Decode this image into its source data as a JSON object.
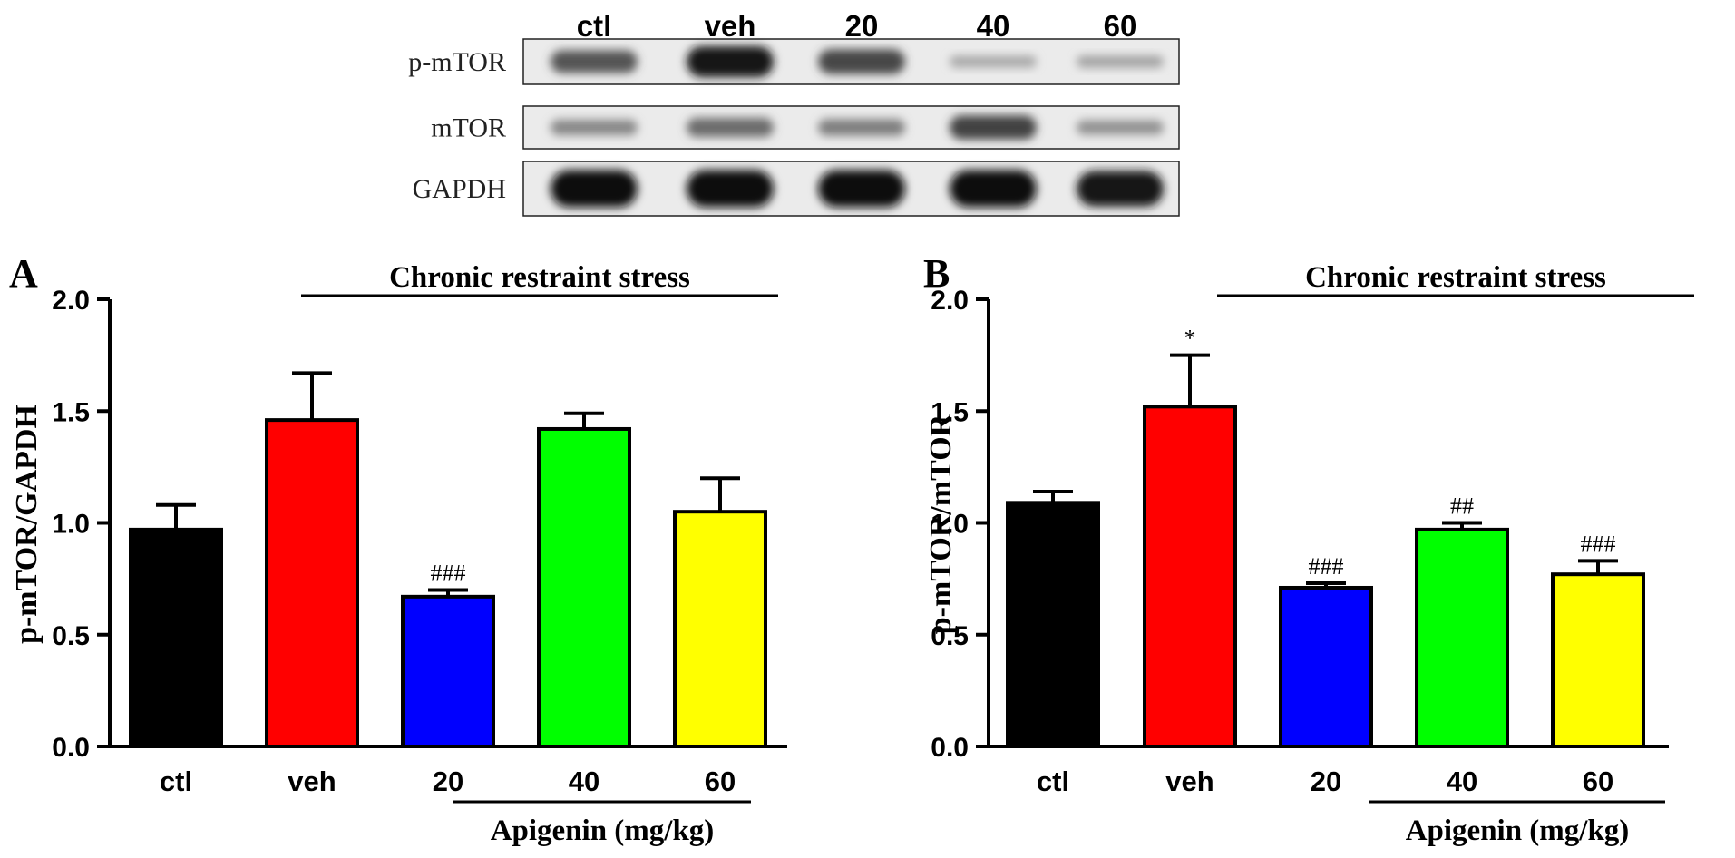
{
  "western_blot": {
    "lanes": [
      "ctl",
      "veh",
      "20",
      "40",
      "60"
    ],
    "rows": [
      {
        "label": "p-mTOR",
        "intensity": [
          0.62,
          0.95,
          0.7,
          0.18,
          0.2
        ]
      },
      {
        "label": "mTOR",
        "intensity": [
          0.35,
          0.5,
          0.4,
          0.72,
          0.3
        ]
      },
      {
        "label": "GAPDH",
        "intensity": [
          1.0,
          1.0,
          1.0,
          1.0,
          0.95
        ]
      }
    ]
  },
  "chart_data": [
    {
      "type": "bar",
      "panel": "A",
      "ylabel": "p-mTOR/GAPDH",
      "xlabel": "Apigenin (mg/kg)",
      "bracket_label": "Chronic restraint stress",
      "categories": [
        "ctl",
        "veh",
        "20",
        "40",
        "60"
      ],
      "values": [
        0.97,
        1.46,
        0.67,
        1.42,
        1.05
      ],
      "errors": [
        0.11,
        0.21,
        0.03,
        0.07,
        0.15
      ],
      "annotations": [
        "",
        "",
        "###",
        "",
        ""
      ],
      "colors": [
        "#000000",
        "#ff0000",
        "#0000ff",
        "#00ff00",
        "#ffff00"
      ],
      "ylim": [
        0,
        2.0
      ],
      "yticks": [
        "0.0",
        "0.5",
        "1.0",
        "1.5",
        "2.0"
      ]
    },
    {
      "type": "bar",
      "panel": "B",
      "ylabel": "p-mTOR/mTOR",
      "xlabel": "Apigenin (mg/kg)",
      "bracket_label": "Chronic restraint stress",
      "categories": [
        "ctl",
        "veh",
        "20",
        "40",
        "60"
      ],
      "values": [
        1.09,
        1.52,
        0.71,
        0.97,
        0.77
      ],
      "errors": [
        0.05,
        0.23,
        0.02,
        0.03,
        0.06
      ],
      "annotations": [
        "",
        "*",
        "###",
        "##",
        "###"
      ],
      "colors": [
        "#000000",
        "#ff0000",
        "#0000ff",
        "#00ff00",
        "#ffff00"
      ],
      "ylim": [
        0,
        2.0
      ],
      "yticks": [
        "0.0",
        "0.5",
        "1.0",
        "1.5",
        "2.0"
      ]
    }
  ]
}
